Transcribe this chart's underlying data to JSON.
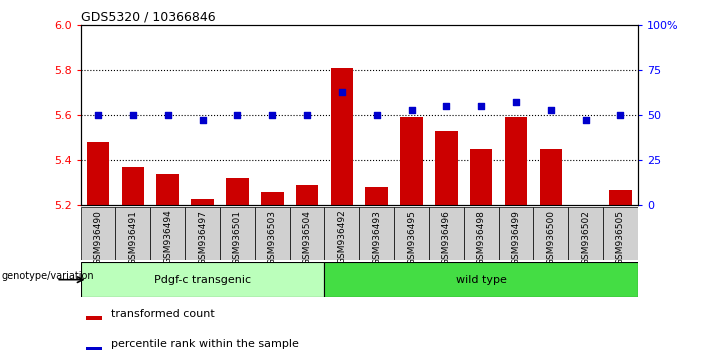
{
  "title": "GDS5320 / 10366846",
  "samples": [
    "GSM936490",
    "GSM936491",
    "GSM936494",
    "GSM936497",
    "GSM936501",
    "GSM936503",
    "GSM936504",
    "GSM936492",
    "GSM936493",
    "GSM936495",
    "GSM936496",
    "GSM936498",
    "GSM936499",
    "GSM936500",
    "GSM936502",
    "GSM936505"
  ],
  "bar_values": [
    5.48,
    5.37,
    5.34,
    5.23,
    5.32,
    5.26,
    5.29,
    5.81,
    5.28,
    5.59,
    5.53,
    5.45,
    5.59,
    5.45,
    5.2,
    5.27
  ],
  "dot_values": [
    50,
    50,
    50,
    47,
    50,
    50,
    50,
    63,
    50,
    53,
    55,
    55,
    57,
    53,
    47,
    50
  ],
  "bar_color": "#cc0000",
  "dot_color": "#0000cc",
  "ylim_left": [
    5.2,
    6.0
  ],
  "ylim_right": [
    0,
    100
  ],
  "yticks_left": [
    5.2,
    5.4,
    5.6,
    5.8,
    6.0
  ],
  "yticks_right": [
    0,
    25,
    50,
    75,
    100
  ],
  "yticklabels_right": [
    "0",
    "25",
    "50",
    "75",
    "100%"
  ],
  "group1_label": "Pdgf-c transgenic",
  "group2_label": "wild type",
  "group1_count": 7,
  "group2_count": 9,
  "group1_color": "#bbffbb",
  "group2_color": "#44dd44",
  "genotype_label": "genotype/variation",
  "legend_bar": "transformed count",
  "legend_dot": "percentile rank within the sample",
  "hlines": [
    5.4,
    5.6,
    5.8
  ],
  "bar_width": 0.65,
  "tick_area_color": "#d0d0d0"
}
